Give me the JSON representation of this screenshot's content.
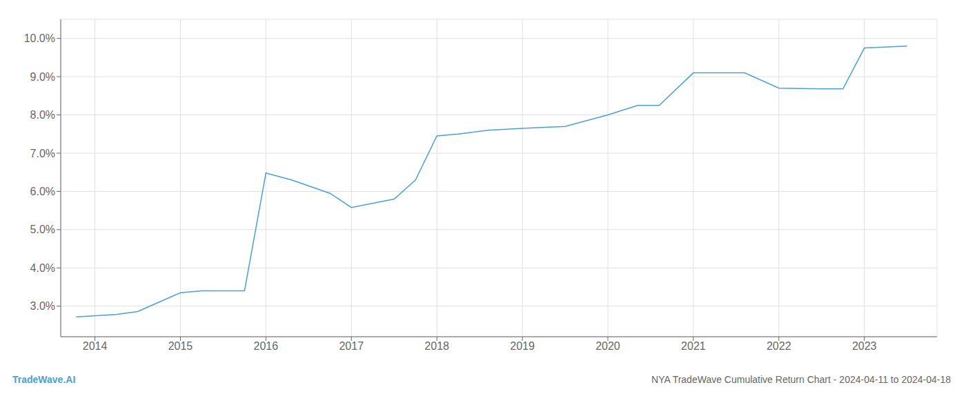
{
  "chart_data": {
    "type": "line",
    "title": "NYA TradeWave Cumulative Return Chart - 2024-04-11 to 2024-04-18",
    "annotations": [
      "TradeWave.AI"
    ],
    "x": [
      2013.78,
      2014.25,
      2014.5,
      2015.0,
      2015.25,
      2015.75,
      2016.0,
      2016.3,
      2016.75,
      2017.0,
      2017.5,
      2017.75,
      2018.0,
      2018.25,
      2018.6,
      2019.0,
      2019.5,
      2020.0,
      2020.35,
      2020.6,
      2021.0,
      2021.25,
      2021.6,
      2022.0,
      2022.5,
      2022.75,
      2023.0,
      2023.5
    ],
    "values": [
      0.0272,
      0.0278,
      0.0286,
      0.0335,
      0.034,
      0.034,
      0.0648,
      0.063,
      0.0595,
      0.0558,
      0.058,
      0.063,
      0.0745,
      0.075,
      0.076,
      0.0765,
      0.077,
      0.08,
      0.0825,
      0.0825,
      0.091,
      0.091,
      0.091,
      0.087,
      0.0868,
      0.0868,
      0.0975,
      0.098
    ],
    "color": "#4a9fd4",
    "xlim": [
      2013.6,
      2023.85
    ],
    "ylim": [
      0.022,
      0.105
    ],
    "xticks": [
      2014,
      2015,
      2016,
      2017,
      2018,
      2019,
      2020,
      2021,
      2022,
      2023
    ],
    "yticks": [
      {
        "value": 0.03,
        "label": "3.0%"
      },
      {
        "value": 0.04,
        "label": "4.0%"
      },
      {
        "value": 0.05,
        "label": "5.0%"
      },
      {
        "value": 0.06,
        "label": "6.0%"
      },
      {
        "value": 0.07,
        "label": "7.0%"
      },
      {
        "value": 0.08,
        "label": "8.0%"
      },
      {
        "value": 0.09,
        "label": "9.0%"
      },
      {
        "value": 0.1,
        "label": "10.0%"
      }
    ],
    "grid": true
  }
}
